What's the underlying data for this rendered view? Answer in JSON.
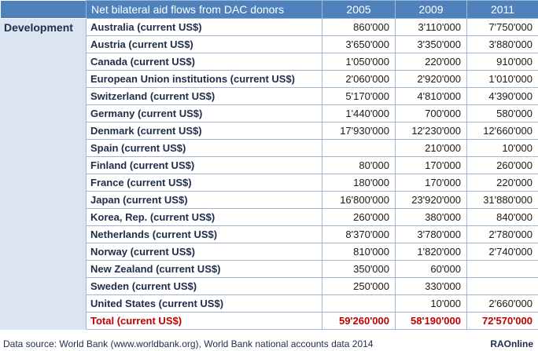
{
  "table": {
    "title": "Net bilateral aid flows from DAC donors",
    "years": [
      "2005",
      "2009",
      "2011"
    ],
    "section_label": "Development",
    "rows": [
      {
        "label": "Australia (current US$)",
        "v2005": "860'000",
        "v2009": "3'110'000",
        "v2011": "7'750'000"
      },
      {
        "label": "Austria (current US$)",
        "v2005": "3'650'000",
        "v2009": "3'350'000",
        "v2011": "3'880'000"
      },
      {
        "label": "Canada (current US$)",
        "v2005": "1'050'000",
        "v2009": "220'000",
        "v2011": "910'000"
      },
      {
        "label": "European Union institutions (current US$)",
        "v2005": "2'060'000",
        "v2009": "2'920'000",
        "v2011": "1'010'000"
      },
      {
        "label": "Switzerland (current US$)",
        "v2005": "5'170'000",
        "v2009": "4'810'000",
        "v2011": "4'390'000"
      },
      {
        "label": "Germany (current US$)",
        "v2005": "1'440'000",
        "v2009": "700'000",
        "v2011": "580'000"
      },
      {
        "label": "Denmark (current US$)",
        "v2005": "17'930'000",
        "v2009": "12'230'000",
        "v2011": "12'660'000"
      },
      {
        "label": "Spain (current US$)",
        "v2005": "",
        "v2009": "210'000",
        "v2011": "10'000"
      },
      {
        "label": "Finland (current US$)",
        "v2005": "80'000",
        "v2009": "170'000",
        "v2011": "260'000"
      },
      {
        "label": "France (current US$)",
        "v2005": "180'000",
        "v2009": "170'000",
        "v2011": "220'000"
      },
      {
        "label": "Japan (current US$)",
        "v2005": "16'800'000",
        "v2009": "23'920'000",
        "v2011": "31'880'000"
      },
      {
        "label": "Korea, Rep. (current US$)",
        "v2005": "260'000",
        "v2009": "380'000",
        "v2011": "840'000"
      },
      {
        "label": "Netherlands (current US$)",
        "v2005": "8'370'000",
        "v2009": "3'780'000",
        "v2011": "2'780'000"
      },
      {
        "label": "Norway (current US$)",
        "v2005": "810'000",
        "v2009": "1'820'000",
        "v2011": "2'740'000"
      },
      {
        "label": "New Zealand (current US$)",
        "v2005": "350'000",
        "v2009": "60'000",
        "v2011": ""
      },
      {
        "label": "Sweden (current US$)",
        "v2005": "250'000",
        "v2009": "330'000",
        "v2011": ""
      },
      {
        "label": "United States (current US$)",
        "v2005": "",
        "v2009": "10'000",
        "v2011": "2'660'000"
      }
    ],
    "total": {
      "label": "Total (current US$)",
      "v2005": "59'260'000",
      "v2009": "58'190'000",
      "v2011": "72'570'000"
    }
  },
  "footer": {
    "source": "Data source: World Bank (www.worldbank.org), World Bank national accounts data 2014",
    "brand": "RAOnline"
  },
  "colors": {
    "header_bg": "#4f81bd",
    "section_bg": "#dbe5f1",
    "total_text": "#c00000"
  }
}
